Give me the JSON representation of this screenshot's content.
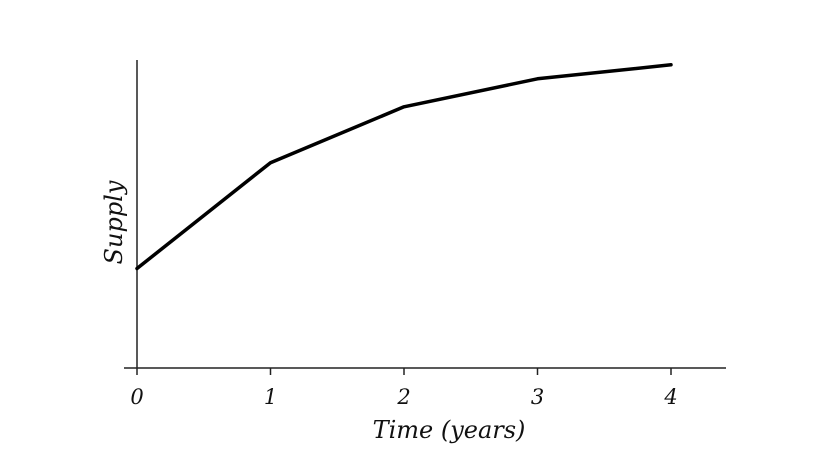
{
  "chart_data": {
    "type": "line",
    "title": "",
    "xlabel": "Time (years)",
    "ylabel": "Supply",
    "x": [
      0,
      1,
      2,
      3,
      4
    ],
    "x_tick_labels": [
      "0",
      "1",
      "2",
      "3",
      "4"
    ],
    "y_tick_labels": [],
    "series": [
      {
        "values": [
          0.32,
          0.66,
          0.84,
          0.93,
          0.975
        ]
      }
    ],
    "xlim": [
      0,
      4
    ],
    "ylim": [
      0,
      1
    ],
    "grid": false,
    "legend": "none",
    "line_color": "#000000"
  }
}
